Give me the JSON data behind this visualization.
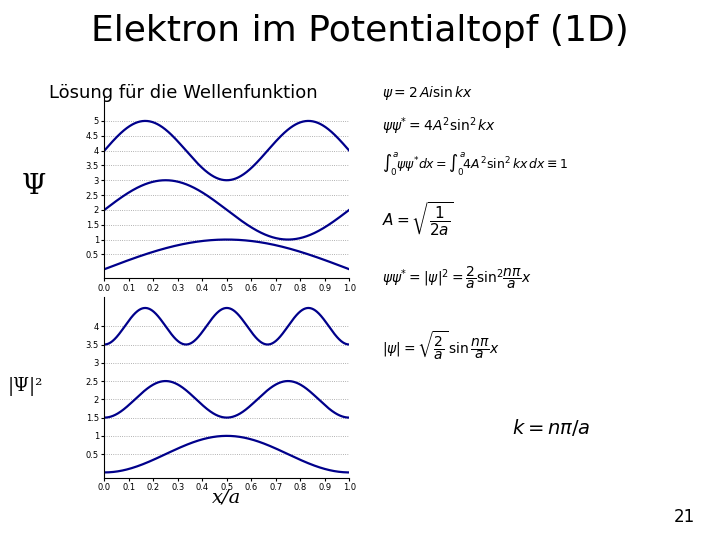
{
  "title": "Elektron im Potentialtopf (1D)",
  "subtitle": "Lösung für die Wellenfunktion",
  "psi_label": "Ψ",
  "psi2_label": "|Ψ|²",
  "xlabel": "x/a",
  "page_number": "21",
  "plot_color": "#00008B",
  "background_color": "#ffffff",
  "n_values": [
    1,
    2,
    3
  ],
  "psi_offsets": [
    0.0,
    2.0,
    4.0
  ],
  "psi2_offsets": [
    0.0,
    1.5,
    3.5
  ],
  "x_ticks": [
    0.0,
    0.1,
    0.2,
    0.3,
    0.4,
    0.5,
    0.6,
    0.7,
    0.8,
    0.9,
    1.0
  ],
  "psi_yticks": [
    0.5,
    1.0,
    1.5,
    2.0,
    2.5,
    3.0,
    3.5,
    4.0,
    4.5,
    5.0
  ],
  "psi_yticklabels": [
    "0.5",
    "1",
    "1.5",
    "2",
    "2.5",
    "3",
    "3.5",
    "4",
    "4.5",
    "5"
  ],
  "psi2_yticks": [
    0.5,
    1.0,
    1.5,
    2.0,
    2.5,
    3.0,
    3.5,
    4.0
  ],
  "psi2_yticklabels": [
    "0.5",
    "1",
    "1.5",
    "2",
    "2.5",
    "3",
    "3.5",
    "4"
  ],
  "psi_ylim": [
    -0.3,
    5.8
  ],
  "psi2_ylim": [
    -0.15,
    4.8
  ],
  "title_fontsize": 26,
  "subtitle_fontsize": 13,
  "tick_fontsize": 6,
  "eq_color": "#000000",
  "box_facecolor": "#d8d8d8"
}
